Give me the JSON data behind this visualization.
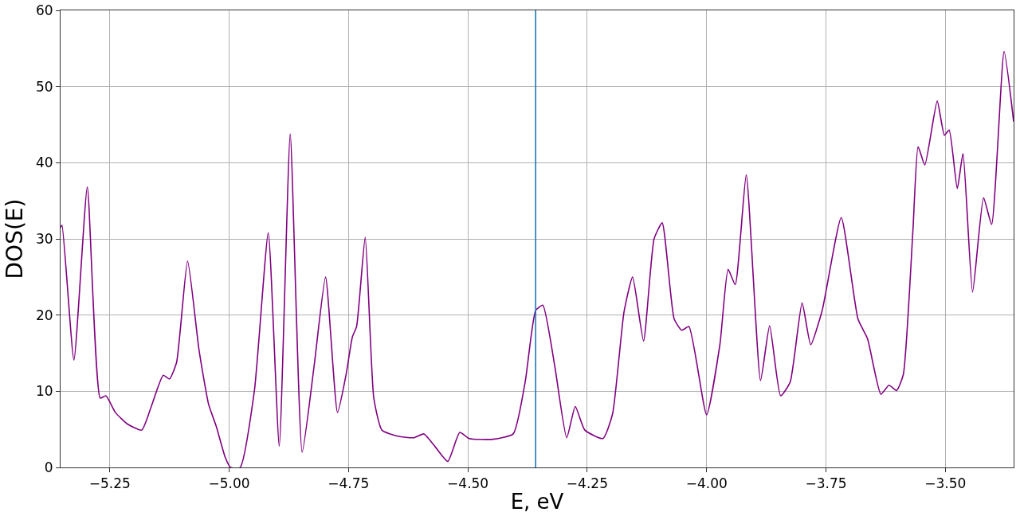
{
  "chart_data": {
    "type": "line",
    "xlabel": "E, eV",
    "ylabel": "DOS(E)",
    "x": [
      -5.353,
      -5.35,
      -5.325,
      -5.297,
      -5.27,
      -5.258,
      -5.238,
      -5.213,
      -5.183,
      -5.163,
      -5.138,
      -5.125,
      -5.11,
      -5.087,
      -5.063,
      -5.043,
      -5.027,
      -5.008,
      -4.997,
      -4.977,
      -4.947,
      -4.918,
      -4.895,
      -4.872,
      -4.847,
      -4.822,
      -4.798,
      -4.773,
      -4.755,
      -4.742,
      -4.733,
      -4.715,
      -4.697,
      -4.68,
      -4.647,
      -4.613,
      -4.592,
      -4.567,
      -4.542,
      -4.517,
      -4.497,
      -4.447,
      -4.405,
      -4.38,
      -4.358,
      -4.343,
      -4.318,
      -4.293,
      -4.275,
      -4.255,
      -4.217,
      -4.197,
      -4.173,
      -4.155,
      -4.132,
      -4.11,
      -4.093,
      -4.068,
      -4.052,
      -4.037,
      -4.0,
      -3.972,
      -3.955,
      -3.94,
      -3.917,
      -3.887,
      -3.868,
      -3.845,
      -3.825,
      -3.8,
      -3.782,
      -3.758,
      -3.718,
      -3.683,
      -3.663,
      -3.635,
      -3.618,
      -3.602,
      -3.588,
      -3.568,
      -3.557,
      -3.543,
      -3.517,
      -3.502,
      -3.492,
      -3.475,
      -3.463,
      -3.443,
      -3.42,
      -3.403,
      -3.377,
      -3.357
    ],
    "series": [
      {
        "color": "#800080",
        "values": [
          31.5,
          31.8,
          14.1,
          36.8,
          9.1,
          9.4,
          7.2,
          5.7,
          4.9,
          8.0,
          12.1,
          11.6,
          13.8,
          27.1,
          15.4,
          8.3,
          5.4,
          1.3,
          0.0,
          0.0,
          10.1,
          30.8,
          2.8,
          43.8,
          2.0,
          13.3,
          25.0,
          7.2,
          12.2,
          17.1,
          18.5,
          30.2,
          9.1,
          4.9,
          4.1,
          3.9,
          4.4,
          2.6,
          0.8,
          4.6,
          3.8,
          3.7,
          4.4,
          11.2,
          20.6,
          21.3,
          13.3,
          3.9,
          8.0,
          4.9,
          3.8,
          7.0,
          20.4,
          25.0,
          16.6,
          30.0,
          32.1,
          19.5,
          18.0,
          18.5,
          6.9,
          16.2,
          26.0,
          24.0,
          38.4,
          11.4,
          18.6,
          9.4,
          11.2,
          21.6,
          16.1,
          20.6,
          32.8,
          19.5,
          16.9,
          9.6,
          10.8,
          10.1,
          12.2,
          31.0,
          42.1,
          39.7,
          48.1,
          43.6,
          44.3,
          36.6,
          41.2,
          23.0,
          35.4,
          31.9,
          54.6,
          45.4
        ]
      }
    ],
    "xlim": [
      -5.353,
      -3.357
    ],
    "xticks": [
      {
        "value": -5.25,
        "label": "−5.25"
      },
      {
        "value": -5.0,
        "label": "−5.00"
      },
      {
        "value": -4.75,
        "label": "−4.75"
      },
      {
        "value": -4.5,
        "label": "−4.50"
      },
      {
        "value": -4.25,
        "label": "−4.25"
      },
      {
        "value": -4.0,
        "label": "−4.00"
      },
      {
        "value": -3.75,
        "label": "−3.75"
      },
      {
        "value": -3.5,
        "label": "−3.50"
      }
    ],
    "ylim": [
      0,
      60
    ],
    "yticks": [
      0,
      10,
      20,
      30,
      40,
      50,
      60
    ],
    "ref_lines": [
      {
        "axis": "x",
        "value": -4.358,
        "color": "#1f77b4"
      }
    ],
    "grid": true,
    "legend": false,
    "marker": "none",
    "line_style": "solid"
  }
}
